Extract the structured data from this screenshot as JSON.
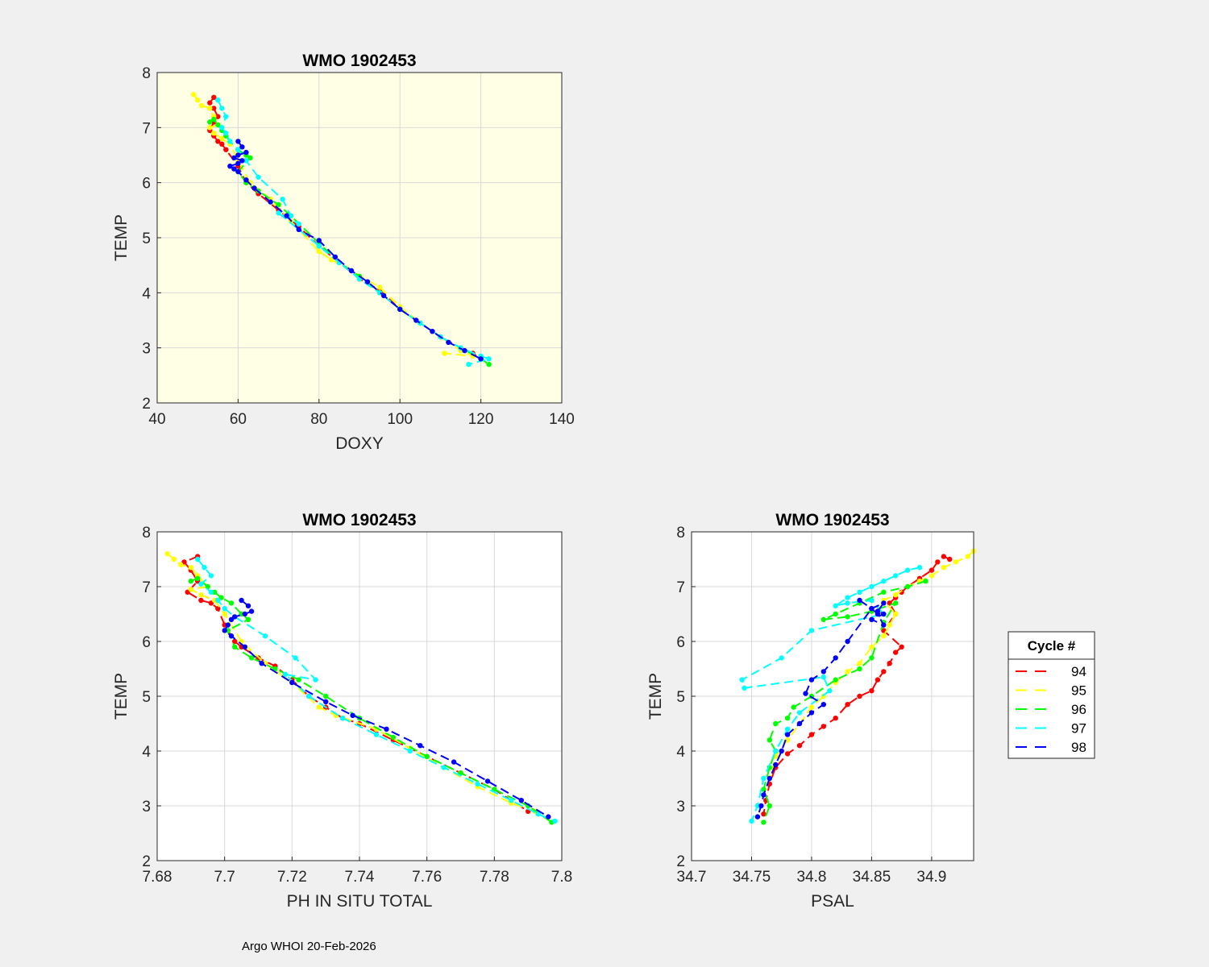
{
  "figure": {
    "footer": "Argo WHOI 20-Feb-2026"
  },
  "colors": {
    "figure_bg": "#f0f0f0",
    "doxy_axes_bg": "#ffffe6",
    "axes_bg": "#ffffff",
    "cycle_94": "#ff0000",
    "cycle_95": "#ffff00",
    "cycle_96": "#00ff00",
    "cycle_97": "#00ffff",
    "cycle_98": "#0000ff"
  },
  "legend": {
    "title": "Cycle #",
    "entries": [
      "94",
      "95",
      "96",
      "97",
      "98"
    ],
    "placement": "right of PSAL panel"
  },
  "chart_data": [
    {
      "id": "doxy",
      "type": "line",
      "title": "WMO 1902453",
      "xlabel": "DOXY",
      "ylabel": "TEMP",
      "xlim": [
        40,
        140
      ],
      "ylim": [
        2,
        8
      ],
      "xticks": [
        "40",
        "60",
        "80",
        "100",
        "120",
        "140"
      ],
      "yticks": [
        "2",
        "3",
        "4",
        "5",
        "6",
        "7",
        "8"
      ],
      "grid": true,
      "series": [
        {
          "name": "94",
          "color": "#ff0000",
          "x": [
            54,
            53,
            54,
            55,
            54,
            53,
            54,
            55,
            56,
            57,
            60,
            62,
            65,
            70,
            75,
            80,
            85,
            90,
            95,
            100,
            105,
            110,
            115,
            118,
            120
          ],
          "y": [
            7.55,
            7.45,
            7.35,
            7.2,
            7.1,
            6.95,
            6.85,
            6.75,
            6.7,
            6.6,
            6.3,
            6.0,
            5.8,
            5.5,
            5.2,
            4.85,
            4.55,
            4.25,
            4.05,
            3.7,
            3.45,
            3.2,
            3.0,
            2.9,
            2.8
          ]
        },
        {
          "name": "95",
          "color": "#ffff00",
          "x": [
            49,
            50,
            51,
            53,
            54,
            55,
            53,
            54,
            56,
            58,
            60,
            63,
            68,
            73,
            80,
            83,
            88,
            95,
            100,
            105,
            110,
            115,
            118,
            111
          ],
          "y": [
            7.6,
            7.5,
            7.4,
            7.35,
            7.2,
            7.05,
            7.0,
            6.9,
            6.8,
            6.7,
            6.4,
            6.0,
            5.7,
            5.3,
            4.75,
            4.6,
            4.4,
            4.1,
            3.75,
            3.45,
            3.2,
            2.95,
            2.85,
            2.9
          ]
        },
        {
          "name": "96",
          "color": "#00ff00",
          "x": [
            53,
            54,
            55,
            56,
            57,
            58,
            60,
            62,
            63,
            60,
            62,
            65,
            70,
            73,
            80,
            85,
            90,
            95,
            100,
            105,
            110,
            115,
            120,
            122
          ],
          "y": [
            7.1,
            7.15,
            7.05,
            6.95,
            6.85,
            6.75,
            6.6,
            6.5,
            6.45,
            6.2,
            6.0,
            5.85,
            5.6,
            5.4,
            4.9,
            4.55,
            4.3,
            4.0,
            3.7,
            3.45,
            3.2,
            3.0,
            2.8,
            2.7
          ]
        },
        {
          "name": "97",
          "color": "#00ffff",
          "x": [
            55,
            56,
            57,
            56,
            57,
            58,
            60,
            62,
            65,
            71,
            73,
            75,
            70,
            80,
            85,
            90,
            95,
            100,
            105,
            110,
            115,
            120,
            122,
            117
          ],
          "y": [
            7.5,
            7.35,
            7.2,
            7.0,
            6.9,
            6.75,
            6.6,
            6.4,
            6.1,
            5.7,
            5.4,
            5.25,
            5.45,
            4.85,
            4.55,
            4.25,
            4.0,
            3.7,
            3.45,
            3.2,
            3.0,
            2.85,
            2.8,
            2.7
          ]
        },
        {
          "name": "98",
          "color": "#0000ff",
          "x": [
            60,
            61,
            62,
            60,
            59,
            61,
            60,
            58,
            59,
            60,
            62,
            64,
            68,
            72,
            75,
            80,
            84,
            88,
            92,
            96,
            100,
            104,
            108,
            112,
            116,
            120
          ],
          "y": [
            6.75,
            6.65,
            6.55,
            6.5,
            6.45,
            6.4,
            6.35,
            6.3,
            6.25,
            6.2,
            6.05,
            5.9,
            5.65,
            5.4,
            5.15,
            4.95,
            4.65,
            4.4,
            4.2,
            3.95,
            3.7,
            3.5,
            3.3,
            3.1,
            2.95,
            2.8
          ]
        }
      ]
    },
    {
      "id": "ph",
      "type": "line",
      "title": "WMO 1902453",
      "xlabel": "PH IN SITU TOTAL",
      "ylabel": "TEMP",
      "xlim": [
        7.68,
        7.8
      ],
      "ylim": [
        2,
        8
      ],
      "xticks": [
        "7.68",
        "7.7",
        "7.72",
        "7.74",
        "7.76",
        "7.78",
        "7.8"
      ],
      "yticks": [
        "2",
        "3",
        "4",
        "5",
        "6",
        "7",
        "8"
      ],
      "grid": true,
      "series": [
        {
          "name": "94",
          "color": "#ff0000",
          "x": [
            7.692,
            7.688,
            7.69,
            7.692,
            7.689,
            7.693,
            7.696,
            7.698,
            7.7,
            7.703,
            7.705,
            7.71,
            7.715,
            7.72,
            7.725,
            7.73,
            7.735,
            7.74,
            7.75,
            7.76,
            7.77,
            7.78,
            7.79
          ],
          "y": [
            7.55,
            7.45,
            7.3,
            7.1,
            6.9,
            6.75,
            6.7,
            6.6,
            6.3,
            6.0,
            5.9,
            5.7,
            5.55,
            5.3,
            5.0,
            4.8,
            4.6,
            4.5,
            4.2,
            3.9,
            3.6,
            3.3,
            2.9
          ]
        },
        {
          "name": "95",
          "color": "#ffff00",
          "x": [
            7.683,
            7.685,
            7.687,
            7.69,
            7.692,
            7.695,
            7.69,
            7.693,
            7.697,
            7.7,
            7.705,
            7.712,
            7.72,
            7.728,
            7.733,
            7.745,
            7.755,
            7.765,
            7.775,
            7.785,
            7.792
          ],
          "y": [
            7.6,
            7.5,
            7.4,
            7.35,
            7.2,
            7.0,
            6.95,
            6.85,
            6.75,
            6.5,
            6.0,
            5.6,
            5.25,
            4.8,
            4.65,
            4.4,
            4.05,
            3.7,
            3.35,
            3.05,
            2.9
          ]
        },
        {
          "name": "96",
          "color": "#00ff00",
          "x": [
            7.69,
            7.692,
            7.695,
            7.697,
            7.699,
            7.702,
            7.705,
            7.707,
            7.701,
            7.703,
            7.708,
            7.715,
            7.722,
            7.73,
            7.74,
            7.75,
            7.76,
            7.77,
            7.78,
            7.79,
            7.797
          ],
          "y": [
            7.1,
            7.15,
            7.0,
            6.9,
            6.8,
            6.7,
            6.5,
            6.4,
            6.2,
            5.9,
            5.7,
            5.5,
            5.3,
            5.0,
            4.6,
            4.25,
            3.9,
            3.6,
            3.3,
            3.0,
            2.7
          ]
        },
        {
          "name": "97",
          "color": "#00ffff",
          "x": [
            7.692,
            7.694,
            7.696,
            7.693,
            7.696,
            7.698,
            7.7,
            7.703,
            7.712,
            7.721,
            7.727,
            7.718,
            7.725,
            7.735,
            7.745,
            7.755,
            7.765,
            7.775,
            7.785,
            7.793,
            7.798
          ],
          "y": [
            7.5,
            7.35,
            7.2,
            7.05,
            6.9,
            6.75,
            6.6,
            6.45,
            6.1,
            5.7,
            5.3,
            5.4,
            5.0,
            4.6,
            4.3,
            4.0,
            3.7,
            3.4,
            3.1,
            2.85,
            2.72
          ]
        },
        {
          "name": "98",
          "color": "#0000ff",
          "x": [
            7.705,
            7.707,
            7.708,
            7.706,
            7.703,
            7.702,
            7.701,
            7.7,
            7.702,
            7.706,
            7.711,
            7.72,
            7.73,
            7.738,
            7.748,
            7.758,
            7.768,
            7.778,
            7.788,
            7.796
          ],
          "y": [
            6.75,
            6.65,
            6.55,
            6.5,
            6.45,
            6.4,
            6.3,
            6.2,
            6.1,
            5.9,
            5.6,
            5.25,
            4.9,
            4.65,
            4.4,
            4.1,
            3.8,
            3.45,
            3.1,
            2.8
          ]
        }
      ]
    },
    {
      "id": "psal",
      "type": "line",
      "title": "WMO 1902453",
      "xlabel": "PSAL",
      "ylabel": "TEMP",
      "xlim": [
        34.7,
        34.935
      ],
      "ylim": [
        2,
        8
      ],
      "xticks": [
        "34.7",
        "34.75",
        "34.8",
        "34.85",
        "34.9"
      ],
      "xtick_values": [
        34.7,
        34.75,
        34.8,
        34.85,
        34.9
      ],
      "yticks": [
        "2",
        "3",
        "4",
        "5",
        "6",
        "7",
        "8"
      ],
      "grid": true,
      "series": [
        {
          "name": "94",
          "color": "#ff0000",
          "x": [
            34.915,
            34.91,
            34.905,
            34.9,
            34.89,
            34.88,
            34.875,
            34.87,
            34.865,
            34.87,
            34.86,
            34.875,
            34.87,
            34.865,
            34.86,
            34.855,
            34.85,
            34.84,
            34.83,
            34.82,
            34.81,
            34.8,
            34.79,
            34.78,
            34.77,
            34.765,
            34.762,
            34.76
          ],
          "y": [
            7.5,
            7.55,
            7.45,
            7.3,
            7.15,
            7.0,
            6.9,
            6.8,
            6.7,
            6.5,
            6.2,
            5.9,
            5.8,
            5.6,
            5.45,
            5.3,
            5.1,
            5.0,
            4.85,
            4.6,
            4.45,
            4.3,
            4.1,
            3.95,
            3.7,
            3.4,
            3.1,
            2.85
          ]
        },
        {
          "name": "95",
          "color": "#ffff00",
          "x": [
            34.935,
            34.93,
            34.92,
            34.91,
            34.9,
            34.89,
            34.88,
            34.87,
            34.86,
            34.87,
            34.865,
            34.86,
            34.85,
            34.84,
            34.83,
            34.82,
            34.81,
            34.8,
            34.79,
            34.78,
            34.77,
            34.765,
            34.76
          ],
          "y": [
            7.65,
            7.55,
            7.45,
            7.35,
            7.2,
            7.1,
            7.0,
            6.85,
            6.75,
            6.5,
            6.3,
            6.1,
            5.9,
            5.6,
            5.45,
            5.25,
            5.0,
            4.8,
            4.5,
            4.2,
            3.9,
            3.5,
            3.2
          ]
        },
        {
          "name": "96",
          "color": "#00ff00",
          "x": [
            34.895,
            34.88,
            34.86,
            34.84,
            34.82,
            34.81,
            34.83,
            34.85,
            34.87,
            34.86,
            34.85,
            34.84,
            34.82,
            34.8,
            34.785,
            34.78,
            34.77,
            34.765,
            34.77,
            34.765,
            34.76,
            34.765,
            34.76
          ],
          "y": [
            7.1,
            7.0,
            6.9,
            6.7,
            6.5,
            6.4,
            6.45,
            6.55,
            6.7,
            6.35,
            5.7,
            5.5,
            5.3,
            5.0,
            4.8,
            4.6,
            4.5,
            4.2,
            4.0,
            3.7,
            3.3,
            3.0,
            2.7
          ]
        },
        {
          "name": "97",
          "color": "#00ffff",
          "x": [
            34.89,
            34.88,
            34.87,
            34.86,
            34.85,
            34.84,
            34.83,
            34.82,
            34.83,
            34.85,
            34.86,
            34.8,
            34.775,
            34.742,
            34.744,
            34.81,
            34.815,
            34.79,
            34.78,
            34.77,
            34.76,
            34.755,
            34.75
          ],
          "y": [
            7.35,
            7.3,
            7.2,
            7.1,
            7.0,
            6.9,
            6.8,
            6.65,
            6.7,
            6.75,
            6.5,
            6.2,
            5.7,
            5.3,
            5.15,
            5.35,
            5.1,
            4.7,
            4.4,
            4.0,
            3.5,
            3.0,
            2.72
          ]
        },
        {
          "name": "98",
          "color": "#0000ff",
          "x": [
            34.84,
            34.85,
            34.86,
            34.855,
            34.86,
            34.85,
            34.86,
            34.855,
            34.85,
            34.83,
            34.82,
            34.81,
            34.8,
            34.795,
            34.81,
            34.8,
            34.79,
            34.78,
            34.775,
            34.77,
            34.765,
            34.76,
            34.758,
            34.755
          ],
          "y": [
            6.75,
            6.6,
            6.7,
            6.55,
            6.5,
            6.4,
            6.3,
            6.5,
            6.6,
            6.0,
            5.7,
            5.45,
            5.3,
            5.05,
            4.85,
            4.7,
            4.5,
            4.3,
            4.0,
            3.75,
            3.5,
            3.2,
            3.0,
            2.8
          ]
        }
      ]
    }
  ]
}
